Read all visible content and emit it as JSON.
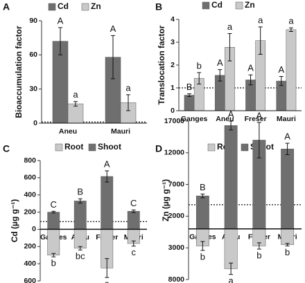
{
  "chart_data": [
    {
      "type": "bar",
      "panel_label": "A",
      "ylabel": "Bioaccumulation factor",
      "categories": [
        "Aneu",
        "Mauri"
      ],
      "series": [
        {
          "name": "Cd",
          "color": "#6f6f6f",
          "values": [
            72,
            58
          ],
          "errors": [
            12,
            19
          ],
          "letters": [
            "A",
            "A"
          ]
        },
        {
          "name": "Zn",
          "color": "#c9c9c9",
          "values": [
            17,
            18
          ],
          "errors": [
            2,
            7
          ],
          "letters": [
            "a",
            "a"
          ]
        }
      ],
      "ylim": [
        0,
        90
      ],
      "yticks": [
        0,
        30,
        60,
        90
      ],
      "hline": 1
    },
    {
      "type": "bar",
      "panel_label": "B",
      "ylabel": "Translocation factor",
      "categories": [
        "Ganges",
        "Aneu",
        "Freser",
        "Mauri"
      ],
      "series": [
        {
          "name": "Cd",
          "color": "#6f6f6f",
          "values": [
            0.68,
            1.55,
            1.35,
            1.3
          ],
          "errors": [
            0.06,
            0.25,
            0.22,
            0.2
          ],
          "letters": [
            "B",
            "A",
            "A",
            "A"
          ]
        },
        {
          "name": "Zn",
          "color": "#c9c9c9",
          "values": [
            1.42,
            2.78,
            3.07,
            3.55
          ],
          "errors": [
            0.25,
            0.6,
            0.6,
            0.08
          ],
          "letters": [
            "b",
            "a",
            "a",
            "a"
          ]
        }
      ],
      "ylim": [
        0,
        4
      ],
      "yticks": [
        0,
        1,
        2,
        3,
        4
      ],
      "hline": 1
    },
    {
      "type": "bar",
      "panel_label": "C",
      "ylabel": "Cd (µg g⁻¹)",
      "categories": [
        "Ganges",
        "Aneu",
        "Freser",
        "Mauri"
      ],
      "series": [
        {
          "name": "Root",
          "color": "#c9c9c9",
          "values": [
            -300,
            -220,
            -450,
            -165
          ],
          "errors": [
            20,
            20,
            110,
            30
          ],
          "letters": [
            "b",
            "bc",
            "a",
            "c"
          ]
        },
        {
          "name": "Shoot",
          "color": "#6f6f6f",
          "values": [
            200,
            330,
            615,
            210
          ],
          "errors": [
            10,
            25,
            65,
            15
          ],
          "letters": [
            "C",
            "B",
            "A",
            "C"
          ]
        }
      ],
      "ylim": [
        -600,
        800
      ],
      "yticks": [
        {
          "value": -600,
          "label": "600"
        },
        {
          "value": -400,
          "label": "400"
        },
        {
          "value": -200,
          "label": "200"
        },
        0,
        200,
        400,
        600,
        800
      ],
      "hline": 90
    },
    {
      "type": "bar",
      "panel_label": "D",
      "ylabel": "Zn (µg g⁻¹)",
      "categories": [
        "Ganges",
        "Aneu",
        "Freser",
        "Mauri"
      ],
      "series": [
        {
          "name": "Root",
          "color": "#c9c9c9",
          "values": [
            -2700,
            -6300,
            -2700,
            -2500
          ],
          "errors": [
            700,
            900,
            500,
            200
          ],
          "letters": [
            "b",
            "a",
            "b",
            "b"
          ]
        },
        {
          "name": "Shoot",
          "color": "#6f6f6f",
          "values": [
            5200,
            16300,
            14000,
            12600
          ],
          "errors": [
            300,
            700,
            2800,
            900
          ],
          "letters": [
            "B",
            "A",
            "A",
            "A"
          ]
        }
      ],
      "ylim": [
        -8000,
        17000
      ],
      "yticks": [
        {
          "value": -8000,
          "label": "8000"
        },
        {
          "value": -3000,
          "label": "3000"
        },
        2000,
        7000,
        12000,
        17000
      ],
      "hline": 3800
    }
  ]
}
